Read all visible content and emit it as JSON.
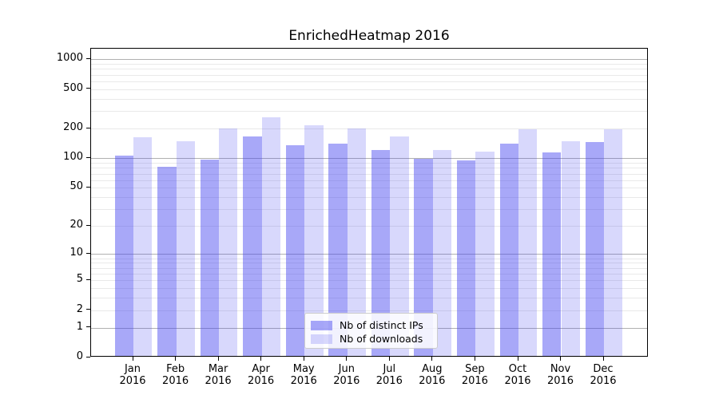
{
  "title": "EnrichedHeatmap 2016",
  "colors": {
    "bar_distinct_ips": "rgba(70,70,240,0.47)",
    "bar_downloads": "rgba(70,70,240,0.21)",
    "bar_distinct_ips_on_white": "#a8a8f3",
    "bar_downloads_on_white": "#d9d9fa",
    "grid_major": "#b0b0b0",
    "grid_minor": "#e9e9e9",
    "axis_frame": "#000000",
    "legend_border": "#cccccc"
  },
  "axes": {
    "y_tick_labels": [
      "1000",
      "500",
      "200",
      "100",
      "50",
      "20",
      "10",
      "5",
      "2",
      "1",
      "0"
    ],
    "y_tick_values": [
      1000,
      500,
      200,
      100,
      50,
      20,
      10,
      5,
      2,
      1,
      0
    ],
    "x_year": "2016",
    "months": [
      "Jan",
      "Feb",
      "Mar",
      "Apr",
      "May",
      "Jun",
      "Jul",
      "Aug",
      "Sep",
      "Oct",
      "Nov",
      "Dec"
    ]
  },
  "legend": {
    "items": [
      {
        "label": "Nb of distinct IPs",
        "color": "rgba(70,70,240,0.47)"
      },
      {
        "label": "Nb of downloads",
        "color": "rgba(70,70,240,0.21)"
      }
    ]
  },
  "chart_data": {
    "type": "bar",
    "title": "EnrichedHeatmap 2016",
    "categories": [
      "Jan 2016",
      "Feb 2016",
      "Mar 2016",
      "Apr 2016",
      "May 2016",
      "Jun 2016",
      "Jul 2016",
      "Aug 2016",
      "Sep 2016",
      "Oct 2016",
      "Nov 2016",
      "Dec 2016"
    ],
    "series": [
      {
        "name": "Nb of distinct IPs",
        "values": [
          103,
          79,
          93,
          160,
          132,
          136,
          116,
          95,
          91,
          136,
          111,
          142
        ]
      },
      {
        "name": "Nb of downloads",
        "values": [
          158,
          145,
          192,
          252,
          207,
          192,
          160,
          117,
          113,
          189,
          144,
          190
        ]
      }
    ],
    "xlabel": "",
    "ylabel": "",
    "y_scale": "log10(1+y)",
    "y_ticks": [
      0,
      1,
      2,
      5,
      10,
      20,
      50,
      100,
      200,
      500,
      1000
    ],
    "y_axis_top_value": 1280,
    "grid": "horizontal, major at 1/10/100/1000, minor at 2-9 per decade",
    "legend_position": "lower center"
  }
}
